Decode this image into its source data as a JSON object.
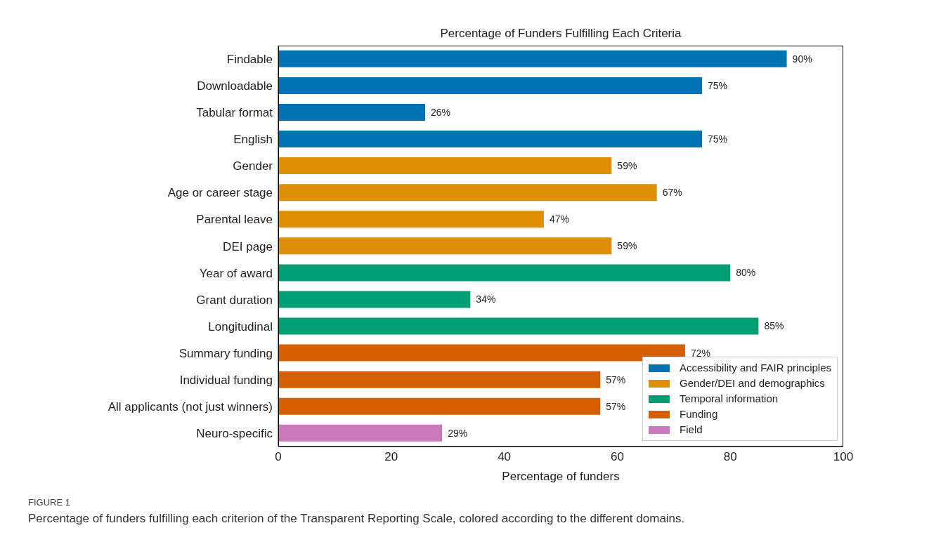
{
  "chart_data": {
    "type": "bar",
    "orientation": "horizontal",
    "title": "Percentage of Funders Fulfilling Each Criteria",
    "xlabel": "Percentage of funders",
    "categories": [
      "Findable",
      "Downloadable",
      "Tabular format",
      "English",
      "Gender",
      "Age or career stage",
      "Parental leave",
      "DEI page",
      "Year of award",
      "Grant duration",
      "Longitudinal",
      "Summary funding",
      "Individual funding",
      "All applicants (not just winners)",
      "Neuro-specific"
    ],
    "series": [
      {
        "name": "Accessibility and FAIR principles",
        "color": "#0173b2",
        "values": [
          90,
          75,
          26,
          75,
          null,
          null,
          null,
          null,
          null,
          null,
          null,
          null,
          null,
          null,
          null
        ],
        "value_labels": [
          "90%",
          "75%",
          "26%",
          "75%",
          null,
          null,
          null,
          null,
          null,
          null,
          null,
          null,
          null,
          null,
          null
        ]
      },
      {
        "name": "Gender/DEI and demographics",
        "color": "#de8f05",
        "values": [
          null,
          null,
          null,
          null,
          59,
          67,
          47,
          59,
          null,
          null,
          null,
          null,
          null,
          null,
          null
        ],
        "value_labels": [
          null,
          null,
          null,
          null,
          "59%",
          "67%",
          "47%",
          "59%",
          null,
          null,
          null,
          null,
          null,
          null,
          null
        ]
      },
      {
        "name": "Temporal information",
        "color": "#029e73",
        "values": [
          null,
          null,
          null,
          null,
          null,
          null,
          null,
          null,
          80,
          34,
          85,
          null,
          null,
          null,
          null
        ],
        "value_labels": [
          null,
          null,
          null,
          null,
          null,
          null,
          null,
          null,
          "80%",
          "34%",
          "85%",
          null,
          null,
          null,
          null
        ]
      },
      {
        "name": "Funding",
        "color": "#d55e00",
        "values": [
          null,
          null,
          null,
          null,
          null,
          null,
          null,
          null,
          null,
          null,
          null,
          72,
          57,
          57,
          null
        ],
        "value_labels": [
          null,
          null,
          null,
          null,
          null,
          null,
          null,
          null,
          null,
          null,
          null,
          "72%",
          "57%",
          "57%",
          null
        ]
      },
      {
        "name": "Field",
        "color": "#cc78bc",
        "values": [
          null,
          null,
          null,
          null,
          null,
          null,
          null,
          null,
          null,
          null,
          null,
          null,
          null,
          null,
          29
        ],
        "value_labels": [
          null,
          null,
          null,
          null,
          null,
          null,
          null,
          null,
          null,
          null,
          null,
          null,
          null,
          null,
          "29%"
        ]
      }
    ],
    "xlim": [
      0,
      100
    ],
    "xticks": [
      0,
      20,
      40,
      60,
      80,
      100
    ],
    "legend": "bottom right",
    "annotations": [
      "FIGURE 1",
      "Percentage of funders fulfilling each criterion of the Transparent Reporting Scale, colored according to the different domains."
    ]
  }
}
